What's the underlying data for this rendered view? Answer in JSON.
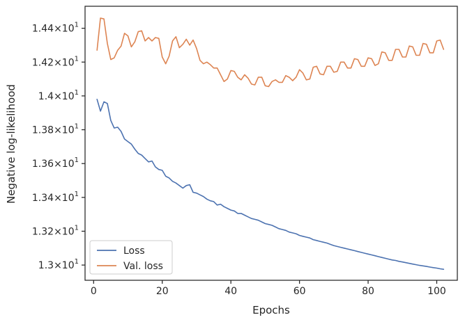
{
  "chart_data": {
    "type": "line",
    "xlabel": "Epochs",
    "ylabel": "Negative log-likelihood",
    "xlim": [
      -2.5,
      106
    ],
    "ylim": [
      12.91,
      14.53
    ],
    "x_ticks": [
      0,
      20,
      40,
      60,
      80,
      100
    ],
    "x_tick_labels": [
      "0",
      "20",
      "40",
      "60",
      "80",
      "100"
    ],
    "y_ticks": [
      13.0,
      13.2,
      13.4,
      13.6,
      13.8,
      14.0,
      14.2,
      14.4
    ],
    "y_tick_mantissas": [
      "1.3",
      "1.32",
      "1.34",
      "1.36",
      "1.38",
      "1.4",
      "1.42",
      "1.44"
    ],
    "y_tick_base": "10",
    "y_tick_exponent": "1",
    "grid": false,
    "legend_position": "lower-left",
    "series": [
      {
        "name": "Loss",
        "color": "#4c72b0",
        "x": [
          1,
          2,
          3,
          4,
          5,
          6,
          7,
          8,
          9,
          10,
          11,
          12,
          13,
          14,
          15,
          16,
          17,
          18,
          19,
          20,
          21,
          22,
          23,
          24,
          25,
          26,
          27,
          28,
          29,
          30,
          31,
          32,
          33,
          34,
          35,
          36,
          37,
          38,
          39,
          40,
          41,
          42,
          43,
          44,
          45,
          46,
          47,
          48,
          49,
          50,
          51,
          52,
          53,
          54,
          55,
          56,
          57,
          58,
          59,
          60,
          61,
          62,
          63,
          64,
          65,
          66,
          67,
          68,
          69,
          70,
          71,
          72,
          73,
          74,
          75,
          76,
          77,
          78,
          79,
          80,
          81,
          82,
          83,
          84,
          85,
          86,
          87,
          88,
          89,
          90,
          91,
          92,
          93,
          94,
          95,
          96,
          97,
          98,
          99,
          100,
          101,
          102
        ],
        "values": [
          13.98,
          13.91,
          13.965,
          13.955,
          13.855,
          13.81,
          13.815,
          13.79,
          13.745,
          13.73,
          13.715,
          13.685,
          13.66,
          13.65,
          13.63,
          13.61,
          13.615,
          13.58,
          13.565,
          13.56,
          13.525,
          13.515,
          13.495,
          13.485,
          13.47,
          13.455,
          13.47,
          13.475,
          13.43,
          13.425,
          13.415,
          13.405,
          13.39,
          13.38,
          13.375,
          13.355,
          13.36,
          13.345,
          13.335,
          13.325,
          13.32,
          13.305,
          13.305,
          13.295,
          13.285,
          13.275,
          13.27,
          13.265,
          13.255,
          13.245,
          13.24,
          13.235,
          13.225,
          13.215,
          13.21,
          13.205,
          13.195,
          13.19,
          13.185,
          13.175,
          13.17,
          13.165,
          13.16,
          13.15,
          13.145,
          13.14,
          13.135,
          13.13,
          13.122,
          13.115,
          13.11,
          13.105,
          13.1,
          13.095,
          13.09,
          13.085,
          13.08,
          13.075,
          13.07,
          13.065,
          13.06,
          13.055,
          13.05,
          13.045,
          13.04,
          13.035,
          13.03,
          13.027,
          13.022,
          13.018,
          13.014,
          13.01,
          13.006,
          13.002,
          12.998,
          12.995,
          12.992,
          12.988,
          12.985,
          12.982,
          12.978,
          12.975
        ]
      },
      {
        "name": "Val. loss",
        "color": "#dd8452",
        "x": [
          1,
          2,
          3,
          4,
          5,
          6,
          7,
          8,
          9,
          10,
          11,
          12,
          13,
          14,
          15,
          16,
          17,
          18,
          19,
          20,
          21,
          22,
          23,
          24,
          25,
          26,
          27,
          28,
          29,
          30,
          31,
          32,
          33,
          34,
          35,
          36,
          37,
          38,
          39,
          40,
          41,
          42,
          43,
          44,
          45,
          46,
          47,
          48,
          49,
          50,
          51,
          52,
          53,
          54,
          55,
          56,
          57,
          58,
          59,
          60,
          61,
          62,
          63,
          64,
          65,
          66,
          67,
          68,
          69,
          70,
          71,
          72,
          73,
          74,
          75,
          76,
          77,
          78,
          79,
          80,
          81,
          82,
          83,
          84,
          85,
          86,
          87,
          88,
          89,
          90,
          91,
          92,
          93,
          94,
          95,
          96,
          97,
          98,
          99,
          100,
          101,
          102
        ],
        "values": [
          14.27,
          14.46,
          14.455,
          14.31,
          14.215,
          14.225,
          14.27,
          14.295,
          14.37,
          14.355,
          14.29,
          14.32,
          14.38,
          14.385,
          14.325,
          14.345,
          14.325,
          14.345,
          14.34,
          14.23,
          14.19,
          14.235,
          14.325,
          14.35,
          14.285,
          14.305,
          14.335,
          14.3,
          14.33,
          14.28,
          14.21,
          14.19,
          14.2,
          14.185,
          14.165,
          14.165,
          14.125,
          14.085,
          14.1,
          14.15,
          14.145,
          14.11,
          14.095,
          14.125,
          14.105,
          14.07,
          14.065,
          14.11,
          14.11,
          14.06,
          14.055,
          14.085,
          14.095,
          14.08,
          14.08,
          14.12,
          14.11,
          14.09,
          14.11,
          14.155,
          14.135,
          14.095,
          14.1,
          14.17,
          14.175,
          14.13,
          14.125,
          14.175,
          14.175,
          14.14,
          14.145,
          14.2,
          14.2,
          14.165,
          14.165,
          14.22,
          14.215,
          14.175,
          14.175,
          14.225,
          14.22,
          14.18,
          14.19,
          14.26,
          14.255,
          14.21,
          14.21,
          14.275,
          14.275,
          14.23,
          14.23,
          14.295,
          14.29,
          14.24,
          14.24,
          14.31,
          14.305,
          14.255,
          14.255,
          14.325,
          14.33,
          14.275
        ]
      }
    ]
  }
}
